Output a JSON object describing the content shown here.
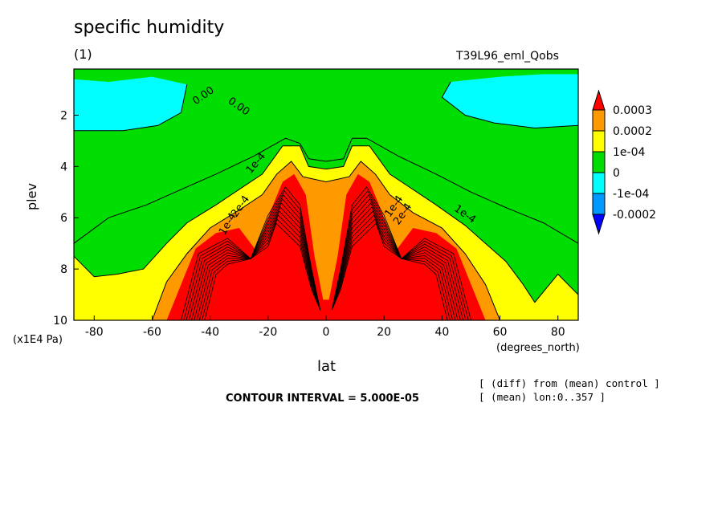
{
  "chart_data": {
    "type": "heatmap",
    "title": "specific humidity",
    "subtitle": "(1)",
    "run_label": "T39L96_eml_Qobs",
    "xlabel": "lat",
    "x_units": "(degrees_north)",
    "ylabel": "plev",
    "y_units": "(x1E4 Pa)",
    "xlim": [
      -87,
      87
    ],
    "ylim": [
      10,
      0.2
    ],
    "x_ticks": [
      -80,
      -60,
      -40,
      -20,
      0,
      20,
      40,
      60,
      80
    ],
    "y_ticks": [
      2,
      4,
      6,
      8,
      10
    ],
    "contour_interval_text": "CONTOUR INTERVAL = 5.000E-05",
    "notes": [
      "[ (diff) from (mean) control ]",
      "[ (mean) lon:0..357 ]"
    ],
    "contour_labels": [
      "0.00",
      "0.00",
      "1e-4",
      "1e-4",
      "2e-4",
      "2e-4",
      "1e-4",
      "1e-4"
    ],
    "colorbar": {
      "labels": [
        "0.0003",
        "0.0002",
        "1e-04",
        "0",
        "-1e-04",
        "-0.0002"
      ],
      "colors": [
        "#ff0000",
        "#ff9900",
        "#ffff00",
        "#00dd00",
        "#00ffff",
        "#0099ff",
        "#0000ff"
      ]
    }
  }
}
